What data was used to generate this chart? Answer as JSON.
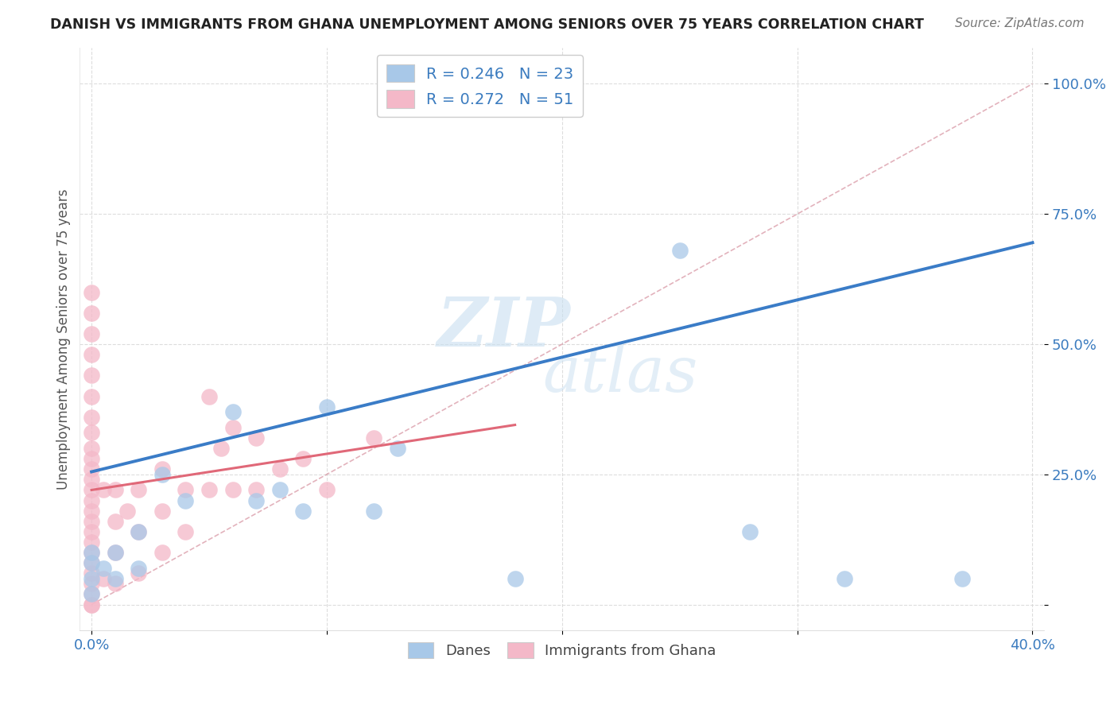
{
  "title": "DANISH VS IMMIGRANTS FROM GHANA UNEMPLOYMENT AMONG SENIORS OVER 75 YEARS CORRELATION CHART",
  "source": "Source: ZipAtlas.com",
  "ylabel": "Unemployment Among Seniors over 75 years",
  "x_ticks": [
    0.0,
    0.1,
    0.2,
    0.3,
    0.4
  ],
  "x_tick_labels": [
    "0.0%",
    "",
    "",
    "",
    "40.0%"
  ],
  "y_ticks": [
    0.0,
    0.25,
    0.5,
    0.75,
    1.0
  ],
  "y_tick_labels": [
    "",
    "25.0%",
    "50.0%",
    "75.0%",
    "100.0%"
  ],
  "xlim": [
    -0.005,
    0.405
  ],
  "ylim": [
    -0.05,
    1.07
  ],
  "danes_R": 0.246,
  "danes_N": 23,
  "ghana_R": 0.272,
  "ghana_N": 51,
  "danes_color": "#a8c8e8",
  "ghana_color": "#f4b8c8",
  "danes_line_color": "#3a7cc7",
  "ghana_line_color": "#e06878",
  "diagonal_color": "#e0a0a8",
  "background_color": "#ffffff",
  "danes_x": [
    0.0,
    0.0,
    0.0,
    0.0,
    0.005,
    0.01,
    0.01,
    0.02,
    0.02,
    0.03,
    0.04,
    0.06,
    0.07,
    0.08,
    0.09,
    0.1,
    0.12,
    0.13,
    0.18,
    0.25,
    0.28,
    0.32,
    0.37
  ],
  "danes_y": [
    0.02,
    0.05,
    0.08,
    0.1,
    0.07,
    0.05,
    0.1,
    0.07,
    0.14,
    0.25,
    0.2,
    0.37,
    0.2,
    0.22,
    0.18,
    0.38,
    0.18,
    0.3,
    0.05,
    0.68,
    0.14,
    0.05,
    0.05
  ],
  "ghana_x": [
    0.0,
    0.0,
    0.0,
    0.0,
    0.0,
    0.0,
    0.0,
    0.0,
    0.0,
    0.0,
    0.0,
    0.0,
    0.0,
    0.0,
    0.0,
    0.0,
    0.0,
    0.0,
    0.0,
    0.0,
    0.0,
    0.0,
    0.0,
    0.0,
    0.0,
    0.005,
    0.005,
    0.01,
    0.01,
    0.01,
    0.01,
    0.015,
    0.02,
    0.02,
    0.02,
    0.03,
    0.03,
    0.03,
    0.04,
    0.04,
    0.05,
    0.05,
    0.055,
    0.06,
    0.06,
    0.07,
    0.07,
    0.08,
    0.09,
    0.1,
    0.12
  ],
  "ghana_y": [
    0.0,
    0.0,
    0.02,
    0.04,
    0.06,
    0.08,
    0.1,
    0.12,
    0.14,
    0.16,
    0.18,
    0.2,
    0.22,
    0.24,
    0.26,
    0.28,
    0.3,
    0.33,
    0.36,
    0.4,
    0.44,
    0.48,
    0.52,
    0.56,
    0.6,
    0.05,
    0.22,
    0.04,
    0.1,
    0.16,
    0.22,
    0.18,
    0.06,
    0.14,
    0.22,
    0.1,
    0.18,
    0.26,
    0.14,
    0.22,
    0.22,
    0.4,
    0.3,
    0.22,
    0.34,
    0.22,
    0.32,
    0.26,
    0.28,
    0.22,
    0.32
  ],
  "watermark1": "ZIP",
  "watermark2": "atlas"
}
